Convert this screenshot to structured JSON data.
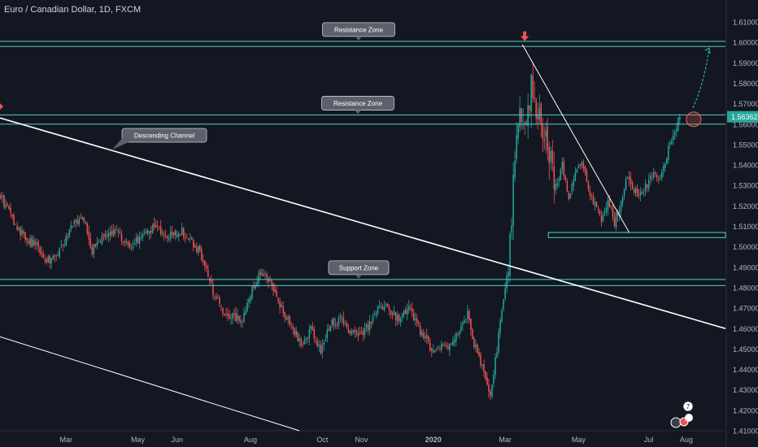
{
  "chart_data": {
    "type": "candlestick",
    "title": "Euro / Canadian Dollar, 1D, FXCM",
    "instrument": "Euro / Canadian Dollar",
    "timeframe": "1D",
    "source": "FXCM",
    "colors": {
      "background": "#131722",
      "up": "#26a69a",
      "down": "#ef5350",
      "zone_line": "#4fd1c5",
      "trend_line": "#ffffff",
      "axis_text": "#b2b5be",
      "callout_bg": "#5d606b",
      "projection_arrow": "#26a69a",
      "marker_arrow": "#ef5350"
    },
    "y_axis": {
      "min": 1.41,
      "max": 1.61,
      "step": 0.01,
      "tick_labels": [
        "1.41000",
        "1.42000",
        "1.43000",
        "1.44000",
        "1.45000",
        "1.46000",
        "1.47000",
        "1.48000",
        "1.49000",
        "1.50000",
        "1.51000",
        "1.52000",
        "1.53000",
        "1.54000",
        "1.55000",
        "1.56000",
        "1.57000",
        "1.58000",
        "1.59000",
        "1.60000",
        "1.61000"
      ],
      "last_price_label": "1.56362",
      "last_price": 1.56362
    },
    "x_axis": {
      "tick_labels": [
        "Mar",
        "May",
        "Jun",
        "Aug",
        "Oct",
        "Nov",
        "2020",
        "Mar",
        "May",
        "Jul",
        "Aug"
      ],
      "tick_positions_bar_index": [
        40,
        84,
        108,
        153,
        197,
        221,
        265,
        309,
        354,
        397,
        420
      ]
    },
    "price_path": [
      [
        0,
        1.525
      ],
      [
        6,
        1.515
      ],
      [
        14,
        1.505
      ],
      [
        22,
        1.5
      ],
      [
        30,
        1.492
      ],
      [
        38,
        1.5
      ],
      [
        44,
        1.51
      ],
      [
        50,
        1.516
      ],
      [
        56,
        1.498
      ],
      [
        62,
        1.504
      ],
      [
        70,
        1.508
      ],
      [
        78,
        1.5
      ],
      [
        86,
        1.504
      ],
      [
        94,
        1.51
      ],
      [
        102,
        1.505
      ],
      [
        110,
        1.508
      ],
      [
        118,
        1.502
      ],
      [
        124,
        1.494
      ],
      [
        130,
        1.478
      ],
      [
        136,
        1.468
      ],
      [
        142,
        1.466
      ],
      [
        148,
        1.464
      ],
      [
        154,
        1.48
      ],
      [
        160,
        1.488
      ],
      [
        166,
        1.48
      ],
      [
        172,
        1.47
      ],
      [
        178,
        1.462
      ],
      [
        184,
        1.452
      ],
      [
        190,
        1.46
      ],
      [
        196,
        1.448
      ],
      [
        202,
        1.462
      ],
      [
        208,
        1.464
      ],
      [
        214,
        1.458
      ],
      [
        220,
        1.456
      ],
      [
        226,
        1.462
      ],
      [
        232,
        1.472
      ],
      [
        238,
        1.47
      ],
      [
        244,
        1.464
      ],
      [
        250,
        1.47
      ],
      [
        256,
        1.46
      ],
      [
        262,
        1.452
      ],
      [
        268,
        1.45
      ],
      [
        274,
        1.452
      ],
      [
        280,
        1.458
      ],
      [
        286,
        1.468
      ],
      [
        290,
        1.452
      ],
      [
        296,
        1.44
      ],
      [
        300,
        1.428
      ],
      [
        304,
        1.45
      ],
      [
        308,
        1.476
      ],
      [
        311,
        1.492
      ],
      [
        313,
        1.514
      ],
      [
        315,
        1.545
      ],
      [
        318,
        1.565
      ],
      [
        322,
        1.555
      ],
      [
        325,
        1.582
      ],
      [
        328,
        1.568
      ],
      [
        332,
        1.558
      ],
      [
        336,
        1.545
      ],
      [
        340,
        1.53
      ],
      [
        344,
        1.54
      ],
      [
        348,
        1.525
      ],
      [
        352,
        1.535
      ],
      [
        356,
        1.542
      ],
      [
        360,
        1.528
      ],
      [
        364,
        1.52
      ],
      [
        368,
        1.512
      ],
      [
        372,
        1.524
      ],
      [
        376,
        1.512
      ],
      [
        380,
        1.522
      ],
      [
        384,
        1.535
      ],
      [
        388,
        1.528
      ],
      [
        392,
        1.525
      ],
      [
        396,
        1.53
      ],
      [
        400,
        1.535
      ],
      [
        404,
        1.532
      ],
      [
        408,
        1.545
      ],
      [
        412,
        1.555
      ],
      [
        416,
        1.563
      ]
    ],
    "zones": [
      {
        "label": "Resistance Zone",
        "y_low": 1.598,
        "y_high": 1.6005,
        "x_start": 0,
        "x_end": 444
      },
      {
        "label": "Resistance Zone",
        "y_low": 1.56,
        "y_high": 1.5645,
        "x_start": 0,
        "x_end": 444
      },
      {
        "label": "Support Zone",
        "y_low": 1.481,
        "y_high": 1.484,
        "x_start": 0,
        "x_end": 444
      },
      {
        "label": "",
        "y_low": 1.5045,
        "y_high": 1.507,
        "x_start": 336,
        "x_end": 444
      }
    ],
    "trend_lines": [
      {
        "label": "Descending Channel",
        "x1": 0,
        "y1": 1.563,
        "x2": 444,
        "y2": 1.46
      },
      {
        "label": "",
        "x1": 0,
        "y1": 1.456,
        "x2": 183,
        "y2": 1.41
      },
      {
        "label": "",
        "x1": 320,
        "y1": 1.599,
        "x2": 385,
        "y2": 1.507
      }
    ],
    "projection": {
      "x1": 420,
      "y1": 1.564,
      "x2": 438,
      "y2": 1.598
    },
    "highlight_circle": {
      "x": 422,
      "y": 1.562
    },
    "marker_arrows": [
      {
        "x": 321,
        "y": 1.603
      }
    ],
    "badges": [
      {
        "text": "7"
      }
    ]
  }
}
